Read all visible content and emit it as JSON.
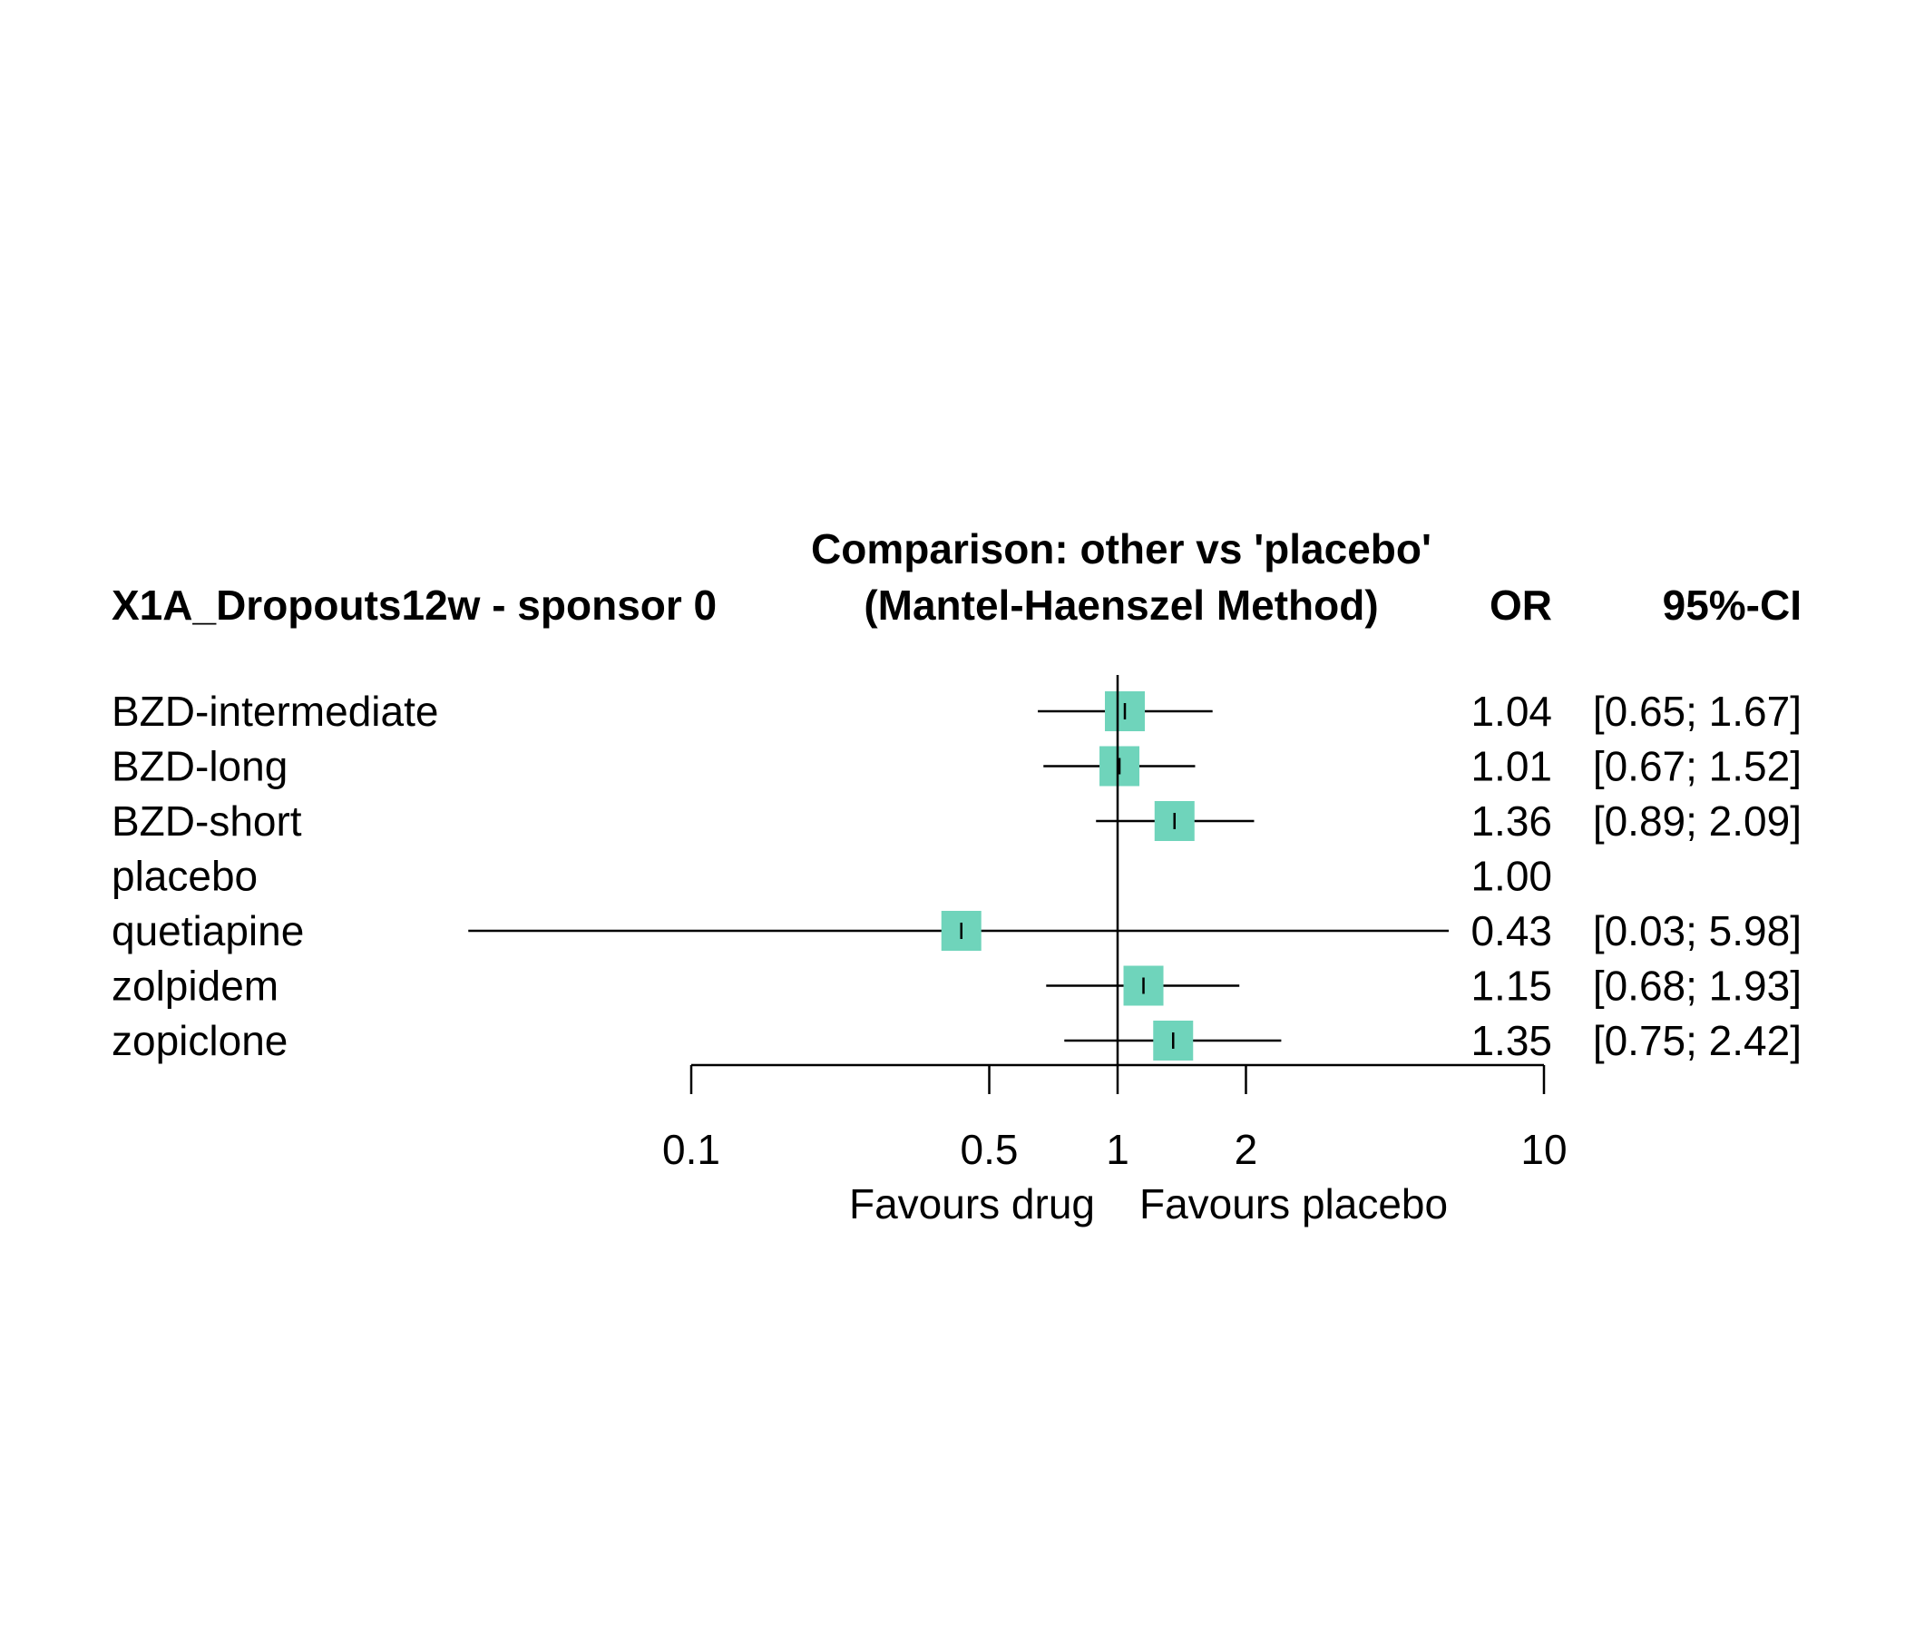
{
  "chart_data": {
    "type": "forest",
    "header": {
      "left": "X1A_Dropouts12w - sponsor 0",
      "title_line1": "Comparison: other vs 'placebo'",
      "title_line2": "(Mantel-Haenszel Method)",
      "col_or": "OR",
      "col_ci": "95%-CI"
    },
    "rows": [
      {
        "label": "BZD-intermediate",
        "or": 1.04,
        "lower": 0.65,
        "upper": 1.67,
        "or_text": "1.04",
        "ci_text": "[0.65; 1.67]"
      },
      {
        "label": "BZD-long",
        "or": 1.01,
        "lower": 0.67,
        "upper": 1.52,
        "or_text": "1.01",
        "ci_text": "[0.67; 1.52]"
      },
      {
        "label": "BZD-short",
        "or": 1.36,
        "lower": 0.89,
        "upper": 2.09,
        "or_text": "1.36",
        "ci_text": "[0.89; 2.09]"
      },
      {
        "label": "placebo",
        "or": 1.0,
        "lower": null,
        "upper": null,
        "or_text": "1.00",
        "ci_text": ""
      },
      {
        "label": "quetiapine",
        "or": 0.43,
        "lower": 0.03,
        "upper": 5.98,
        "or_text": "0.43",
        "ci_text": "[0.03; 5.98]"
      },
      {
        "label": "zolpidem",
        "or": 1.15,
        "lower": 0.68,
        "upper": 1.93,
        "or_text": "1.15",
        "ci_text": "[0.68; 1.93]"
      },
      {
        "label": "zopiclone",
        "or": 1.35,
        "lower": 0.75,
        "upper": 2.42,
        "or_text": "1.35",
        "ci_text": "[0.75; 2.42]"
      }
    ],
    "x_axis": {
      "scale": "log",
      "ticks": [
        0.1,
        0.5,
        1,
        2,
        10
      ],
      "tick_labels": [
        "0.1",
        "0.5",
        "1",
        "2",
        "10"
      ],
      "reference_line": 1,
      "label_left": "Favours drug",
      "label_right": "Favours placebo"
    },
    "colors": {
      "square": "#6fd4bb",
      "line": "#000000"
    }
  }
}
